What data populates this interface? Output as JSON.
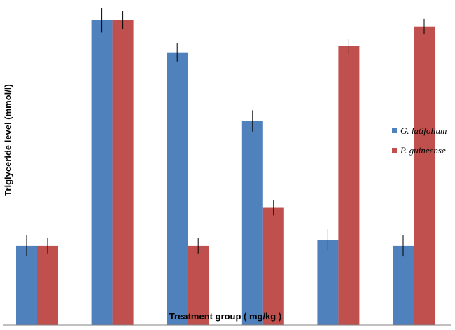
{
  "chart_data": {
    "type": "bar",
    "title": "",
    "xlabel": "Treatment group ( mg/kg )",
    "ylabel": "Triglyceride level (mmol/l)",
    "categories": [
      "",
      "",
      "",
      "",
      "",
      ""
    ],
    "ylim": [
      0,
      1.0
    ],
    "grid": false,
    "legend_position": "right",
    "series": [
      {
        "name": "G. latifolium",
        "color": "#4F81BD",
        "values": [
          0.26,
          1.0,
          0.895,
          0.67,
          0.28,
          0.26
        ],
        "errors": [
          0.035,
          0.04,
          0.03,
          0.035,
          0.035,
          0.035
        ]
      },
      {
        "name": "P. guineense",
        "color": "#C0504D",
        "values": [
          0.26,
          1.0,
          0.26,
          0.385,
          0.915,
          0.98
        ],
        "errors": [
          0.025,
          0.03,
          0.025,
          0.025,
          0.025,
          0.025
        ]
      }
    ]
  }
}
